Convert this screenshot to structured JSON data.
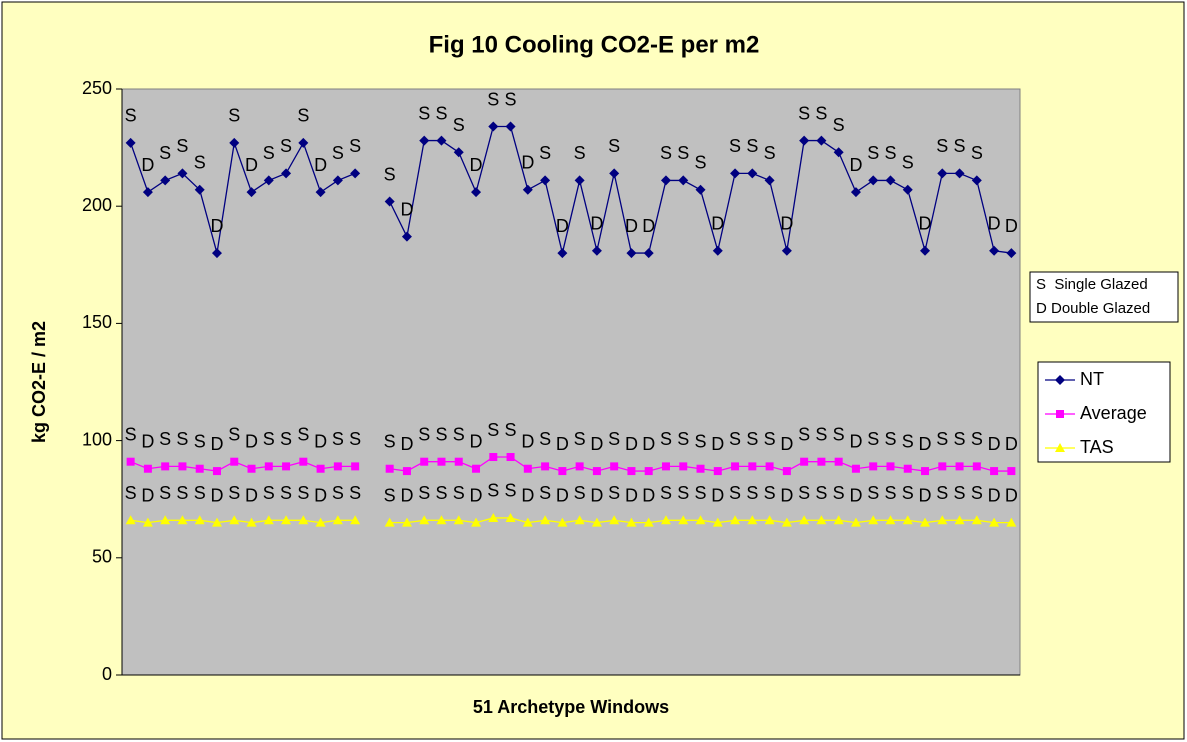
{
  "chart_data": {
    "type": "line",
    "title": "Fig 10 Cooling CO2-E per m2",
    "ylabel": "kg CO2-E / m2",
    "xlabel": "51 Archetype Windows",
    "annotation": [
      "S  Single Glazed",
      "D Double Glazed"
    ],
    "ylim": [
      0,
      250
    ],
    "yticks": [
      0,
      50,
      100,
      150,
      200,
      250
    ],
    "grid": false,
    "legend": "right",
    "point_labels": [
      "S",
      "D",
      "S",
      "S",
      "S",
      "D",
      "S",
      "D",
      "S",
      "S",
      "S",
      "D",
      "S",
      "S",
      null,
      "S",
      "D",
      "S",
      "S",
      "S",
      "D",
      "S",
      "S",
      "D",
      "S",
      "D",
      "S",
      "D",
      "S",
      "D",
      "D",
      "S",
      "S",
      "S",
      "D",
      "S",
      "S",
      "S",
      "D",
      "S",
      "S",
      "S",
      "D",
      "S",
      "S",
      "S",
      "D",
      "S",
      "S",
      "S",
      "D",
      "D"
    ],
    "series": [
      {
        "name": "NT",
        "color": "#000080",
        "marker": "diamond",
        "values": [
          227,
          206,
          211,
          214,
          207,
          180,
          227,
          206,
          211,
          214,
          227,
          206,
          211,
          214,
          null,
          202,
          187,
          228,
          228,
          223,
          206,
          234,
          234,
          207,
          211,
          180,
          211,
          181,
          214,
          180,
          180,
          211,
          211,
          207,
          181,
          214,
          214,
          211,
          181,
          228,
          228,
          223,
          206,
          211,
          211,
          207,
          181,
          214,
          214,
          211,
          181,
          180
        ]
      },
      {
        "name": "Average",
        "color": "#ff00ff",
        "marker": "square",
        "values": [
          91,
          88,
          89,
          89,
          88,
          87,
          91,
          88,
          89,
          89,
          91,
          88,
          89,
          89,
          null,
          88,
          87,
          91,
          91,
          91,
          88,
          93,
          93,
          88,
          89,
          87,
          89,
          87,
          89,
          87,
          87,
          89,
          89,
          88,
          87,
          89,
          89,
          89,
          87,
          91,
          91,
          91,
          88,
          89,
          89,
          88,
          87,
          89,
          89,
          89,
          87,
          87
        ]
      },
      {
        "name": "TAS",
        "color": "#ffff00",
        "marker": "triangle",
        "values": [
          66,
          65,
          66,
          66,
          66,
          65,
          66,
          65,
          66,
          66,
          66,
          65,
          66,
          66,
          null,
          65,
          65,
          66,
          66,
          66,
          65,
          67,
          67,
          65,
          66,
          65,
          66,
          65,
          66,
          65,
          65,
          66,
          66,
          66,
          65,
          66,
          66,
          66,
          65,
          66,
          66,
          66,
          65,
          66,
          66,
          66,
          65,
          66,
          66,
          66,
          65,
          65
        ]
      }
    ]
  }
}
